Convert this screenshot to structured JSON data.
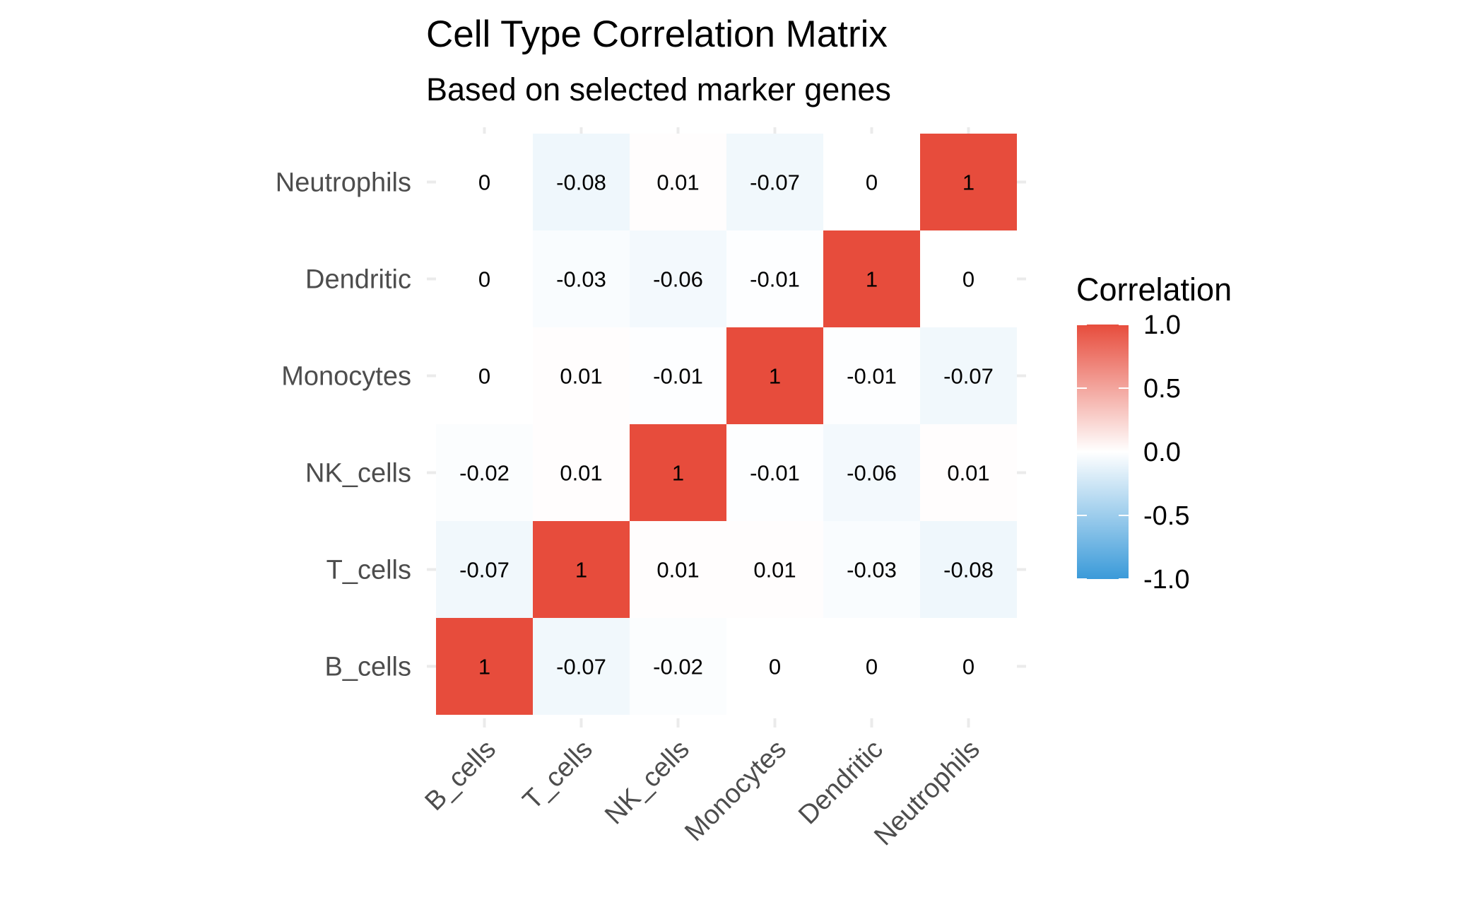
{
  "chart_data": {
    "type": "heatmap",
    "title": "Cell Type Correlation Matrix",
    "subtitle": "Based on selected marker genes",
    "x_categories": [
      "B_cells",
      "T_cells",
      "NK_cells",
      "Monocytes",
      "Dendritic",
      "Neutrophils"
    ],
    "y_categories": [
      "B_cells",
      "T_cells",
      "NK_cells",
      "Monocytes",
      "Dendritic",
      "Neutrophils"
    ],
    "values": [
      [
        1,
        -0.07,
        -0.02,
        0,
        0,
        0
      ],
      [
        -0.07,
        1,
        0.01,
        0.01,
        -0.03,
        -0.08
      ],
      [
        -0.02,
        0.01,
        1,
        -0.01,
        -0.06,
        0.01
      ],
      [
        0,
        0.01,
        -0.01,
        1,
        -0.01,
        -0.07
      ],
      [
        0,
        -0.03,
        -0.06,
        -0.01,
        1,
        0
      ],
      [
        0,
        -0.08,
        0.01,
        -0.07,
        0,
        1
      ]
    ],
    "value_range": [
      -1,
      1
    ],
    "color_scale": {
      "low": "#3a9ad9",
      "mid": "#ffffff",
      "high": "#e74c3c"
    },
    "legend": {
      "title": "Correlation",
      "ticks": [
        1.0,
        0.5,
        0.0,
        -0.5,
        -1.0
      ],
      "tick_labels": [
        "1.0",
        "0.5",
        "0.0",
        "-0.5",
        "-1.0"
      ],
      "placement": "right"
    },
    "grid": false
  }
}
